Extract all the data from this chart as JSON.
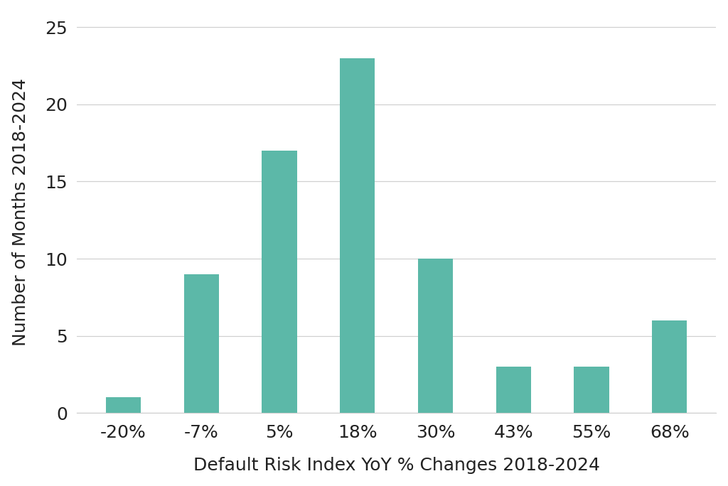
{
  "categories": [
    "-20%",
    "-7%",
    "5%",
    "18%",
    "30%",
    "43%",
    "55%",
    "68%"
  ],
  "values": [
    1,
    9,
    17,
    23,
    10,
    3,
    3,
    6
  ],
  "bar_color": "#5cb8a8",
  "bar_edgecolor": "none",
  "xlabel": "Default Risk Index YoY % Changes 2018-2024",
  "ylabel": "Number of Months 2018-2024",
  "xlabel_fontsize": 18,
  "ylabel_fontsize": 18,
  "tick_fontsize": 18,
  "ylim": [
    0,
    26
  ],
  "yticks": [
    0,
    5,
    10,
    15,
    20,
    25
  ],
  "grid_color": "#d0d0d0",
  "background_color": "#ffffff",
  "bar_width": 0.45,
  "figsize": [
    10.24,
    6.84
  ],
  "dpi": 100
}
